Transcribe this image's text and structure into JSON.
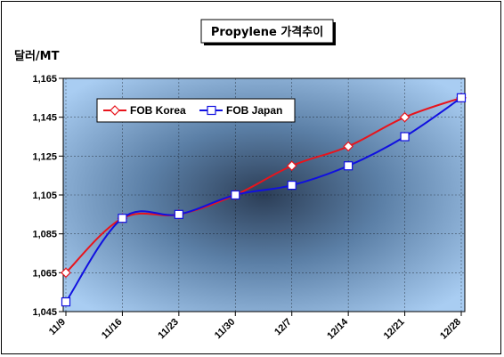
{
  "colors": {
    "korea": "#e8141c",
    "japan": "#1010e0",
    "plot_center": "#2c3e57",
    "plot_edge": "#a9cdf2"
  },
  "chart_data": {
    "type": "line",
    "title": "Propylene 가격추이",
    "ylabel": "달러/MT",
    "xlabel": "",
    "categories": [
      "11/9",
      "11/16",
      "11/23",
      "11/30",
      "12/7",
      "12/14",
      "12/21",
      "12/28"
    ],
    "ylim": [
      1045,
      1165
    ],
    "yticks": [
      1045,
      1065,
      1085,
      1105,
      1125,
      1145,
      1165
    ],
    "ytick_labels": [
      "1,045",
      "1,065",
      "1,085",
      "1,105",
      "1,125",
      "1,145",
      "1,165"
    ],
    "grid": true,
    "legend_position": "top-left",
    "series": [
      {
        "name": "FOB Korea",
        "marker": "diamond",
        "values": [
          1065,
          1093,
          1095,
          1105,
          1120,
          1130,
          1145,
          1155
        ]
      },
      {
        "name": "FOB Japan",
        "marker": "square",
        "values": [
          1050,
          1093,
          1095,
          1105,
          1110,
          1120,
          1135,
          1155
        ]
      }
    ]
  }
}
